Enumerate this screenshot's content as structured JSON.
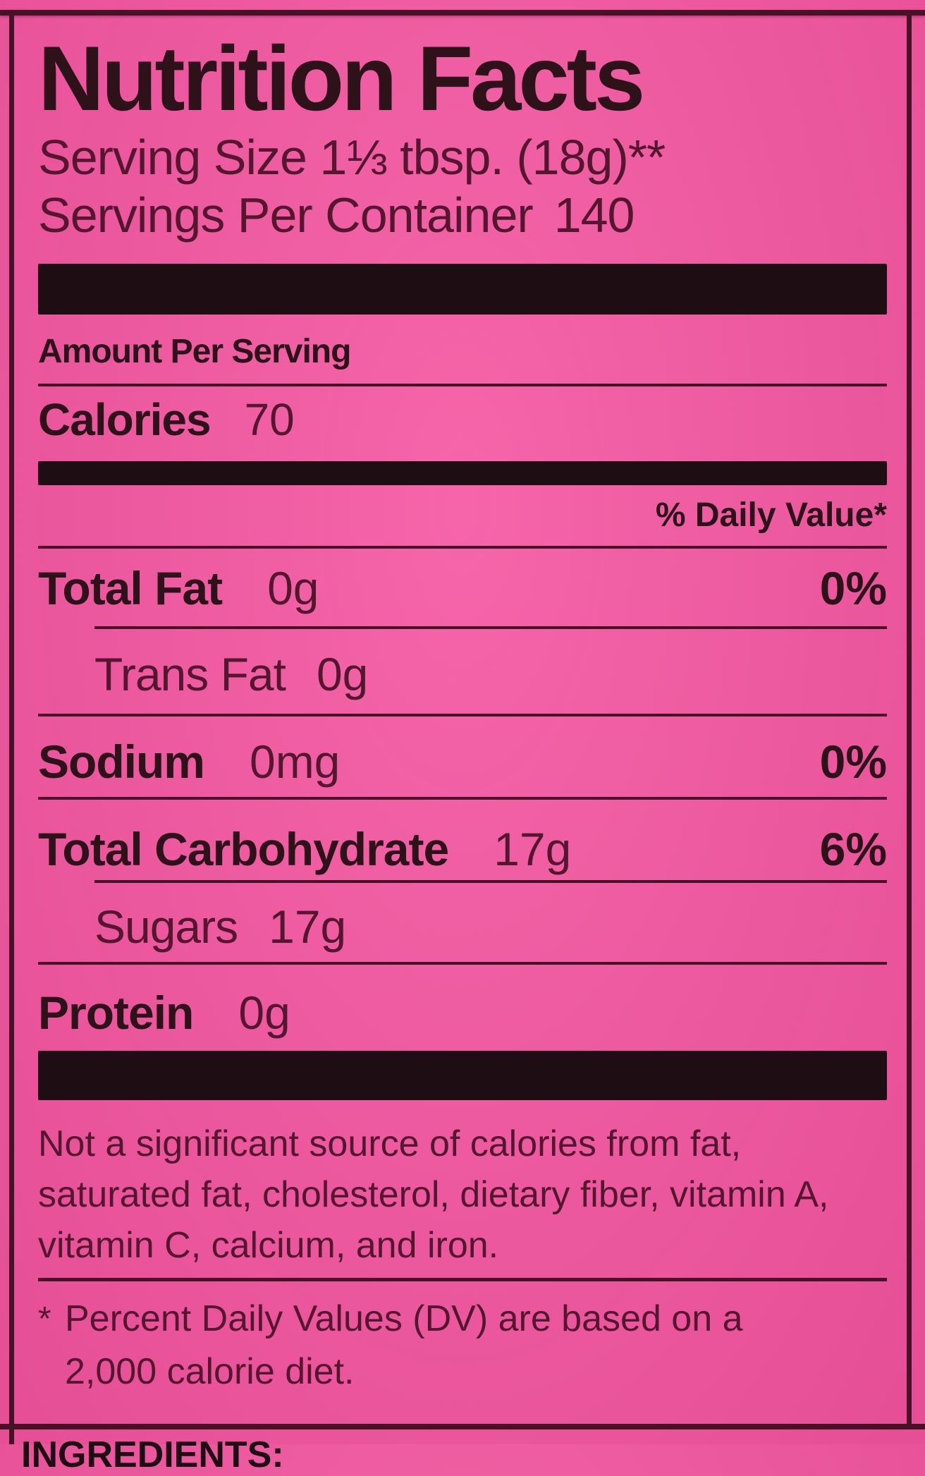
{
  "colors": {
    "page-pink": "#F4549F",
    "ink-bold": "#2D1219",
    "ink-regular": "#54172F",
    "line-dark": "#471126",
    "bar-black": "#1E0D12"
  },
  "label": {
    "title": "Nutrition Facts",
    "serving_size": "Serving Size 1⅓ tbsp. (18g)**",
    "servings_per_container_label": "Servings Per Container",
    "servings_per_container_value": "140",
    "amount_per_serving": "Amount Per Serving",
    "calories_label": "Calories",
    "calories_value": "70",
    "daily_value_header": "% Daily Value*",
    "nutrients": [
      {
        "name": "Total Fat",
        "amount": "0g",
        "dv": "0%"
      },
      {
        "name": "Trans Fat",
        "amount": "0g",
        "dv": ""
      },
      {
        "name": "Sodium",
        "amount": "0mg",
        "dv": "0%"
      },
      {
        "name": "Total Carbohydrate",
        "amount": "17g",
        "dv": "6%"
      },
      {
        "name": "Sugars",
        "amount": "17g",
        "dv": ""
      },
      {
        "name": "Protein",
        "amount": "0g",
        "dv": ""
      }
    ],
    "insignificant_note": "Not a significant source of calories from fat, saturated fat, cholesterol, dietary fiber, vitamin A, vitamin C, calcium, and iron.",
    "footnote_marker": "*",
    "footnote_text": "Percent Daily Values (DV) are based on a 2,000 calorie diet.",
    "ingredients_partial": "INGREDIENTS:"
  }
}
